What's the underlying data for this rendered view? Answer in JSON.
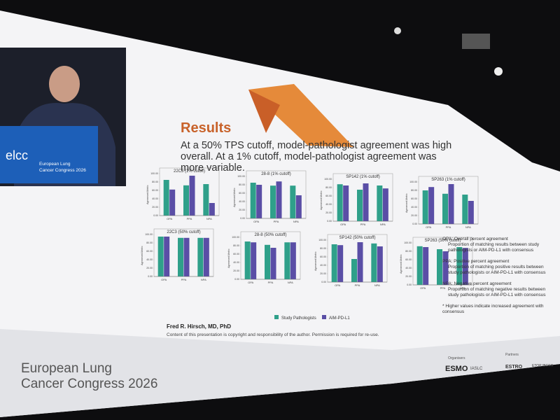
{
  "video_inset": {
    "logo": "elcc",
    "caption_line1": "European Lung",
    "caption_line2": "Cancer Congress 2026"
  },
  "slide": {
    "title": "Results",
    "subtitle": "At a 50% TPS cutoff, model-pathologist agreement was high overall. At a 1% cutoff, model-pathologist agreement was more variable.",
    "series": [
      {
        "name": "Study Pathologists",
        "color": "#2fa08a"
      },
      {
        "name": "AIM-PD-L1",
        "color": "#5a4ea6"
      }
    ],
    "ylim": [
      0,
      100
    ],
    "yticks": [
      {
        "value": 0,
        "label": "0.00"
      },
      {
        "value": 20,
        "label": "20.00"
      },
      {
        "value": 40,
        "label": "40.00"
      },
      {
        "value": 60,
        "label": "60.00"
      },
      {
        "value": 80,
        "label": "80.00"
      },
      {
        "value": 100,
        "label": "100.00"
      }
    ],
    "charts": [
      {
        "title": "22C3 (1% cutoff)",
        "y_label": "Agreement Metric",
        "categories": [
          "OPA",
          "PPA",
          "NPA"
        ],
        "values": [
          [
            85,
            72,
            75
          ],
          [
            62,
            95,
            30
          ]
        ]
      },
      {
        "title": "28-8 (1% cutoff)",
        "y_label": "Agreement Metric",
        "categories": [
          "OPA",
          "PPA",
          "NPA"
        ],
        "values": [
          [
            85,
            78,
            78
          ],
          [
            80,
            88,
            55
          ]
        ]
      },
      {
        "title": "SP142 (1% cutoff)",
        "y_label": "Agreement Metric",
        "categories": [
          "OPA",
          "PPA",
          "NPA"
        ],
        "values": [
          [
            88,
            75,
            85
          ],
          [
            85,
            90,
            78
          ]
        ]
      },
      {
        "title": "SP263 (1% cutoff)",
        "y_label": "Agreement Metric",
        "categories": [
          "OPA",
          "PPA",
          "NPA"
        ],
        "values": [
          [
            80,
            72,
            70
          ],
          [
            88,
            95,
            55
          ]
        ]
      },
      {
        "title": "22C3 (50% cutoff)",
        "y_label": "Agreement Metric",
        "categories": [
          "OPA",
          "PPA",
          "NPA"
        ],
        "values": [
          [
            95,
            92,
            92
          ],
          [
            95,
            92,
            92
          ]
        ]
      },
      {
        "title": "28-8 (50% cutoff)",
        "y_label": "Agreement Metric",
        "categories": [
          "OPA",
          "PPA",
          "NPA"
        ],
        "values": [
          [
            90,
            82,
            88
          ],
          [
            88,
            75,
            88
          ]
        ]
      },
      {
        "title": "SP142 (50% cutoff)",
        "y_label": "Agreement Metric",
        "categories": [
          "OPA",
          "PPA",
          "NPA"
        ],
        "values": [
          [
            90,
            55,
            92
          ],
          [
            88,
            95,
            85
          ]
        ]
      },
      {
        "title": "SP263 (50% cutoff)",
        "y_label": "Agreement Metric",
        "categories": [
          "OPA",
          "PPA",
          "NPA"
        ],
        "values": [
          [
            92,
            85,
            90
          ],
          [
            90,
            80,
            88
          ]
        ]
      }
    ],
    "definitions": [
      {
        "term": "OPA: Overall percent agreement",
        "text": "Proportion of matching results between study pathologists or AIM-PD-L1 with consensus"
      },
      {
        "term": "PPA: Positive percent agreement",
        "text": "Proportion of matching positive results between study pathologists or AIM-PD-L1 with consensus"
      },
      {
        "term": "NPA: Negative percent agreement",
        "text": "Proportion of matching negative results between study pathologists or AIM-PD-L1 with consensus"
      }
    ],
    "footnote": "* Higher values indicate increased agreement with consensus",
    "author": "Fred R. Hirsch, MD, PhD",
    "copyright": "Content of this presentation is copyright and responsibility of the author. Permission is required for re-use.",
    "organisers_label": "Organisers",
    "organisers": [
      "ESMO",
      "IASLC"
    ],
    "partners_label": "Partners",
    "partners": [
      "ESTRO",
      "ETOP IBCSG"
    ]
  },
  "footer": {
    "line1": "European Lung",
    "line2": "Cancer Congress 2026"
  }
}
